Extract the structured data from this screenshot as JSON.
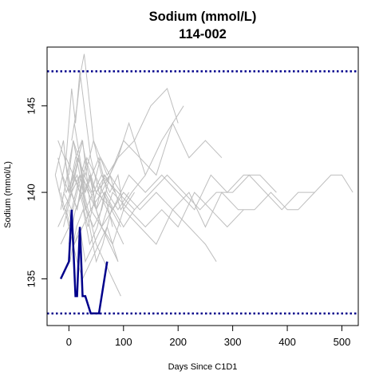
{
  "chart_data": {
    "type": "line",
    "title": "Sodium (mmol/L)",
    "subtitle": "114-002",
    "xlabel": "Days Since C1D1",
    "ylabel": "Sodium (mmol/L)",
    "xlim": [
      -40,
      530
    ],
    "ylim": [
      132.3,
      148.4
    ],
    "xticks": [
      0,
      100,
      200,
      300,
      400,
      500
    ],
    "xtick_labels": [
      "0",
      "100",
      "200",
      "300",
      "400",
      "500"
    ],
    "yticks": [
      135,
      140,
      145
    ],
    "ytick_labels": [
      "135",
      "140",
      "145"
    ],
    "grid": false,
    "legend": "none",
    "reference_lines": [
      {
        "y": 147,
        "style": "dotted",
        "color": "#00008B"
      },
      {
        "y": 133,
        "style": "dotted",
        "color": "#00008B"
      }
    ],
    "colors": {
      "highlight": "#00008B",
      "background_series": "#BEBEBE",
      "reference": "#00008B"
    },
    "highlight_series": {
      "x": [
        -15,
        0,
        5,
        12,
        15,
        20,
        25,
        30,
        40,
        55,
        70
      ],
      "y": [
        135,
        136,
        139,
        134,
        134,
        138,
        134,
        134,
        133,
        133,
        136
      ]
    },
    "background_series": [
      {
        "x": [
          -25,
          -10,
          0,
          15,
          30,
          45,
          70,
          90,
          110,
          140,
          170,
          210
        ],
        "y": [
          141,
          143,
          140,
          142,
          141,
          143,
          141,
          142,
          144,
          141,
          143,
          145
        ]
      },
      {
        "x": [
          -20,
          -5,
          10,
          25,
          40,
          60,
          90,
          120,
          150,
          180,
          200
        ],
        "y": [
          142,
          140,
          141,
          143,
          139,
          140,
          142,
          143,
          145,
          146,
          144
        ]
      },
      {
        "x": [
          -15,
          0,
          15,
          30,
          50,
          75,
          100,
          130,
          160,
          190,
          220,
          250,
          280
        ],
        "y": [
          140,
          138,
          140,
          142,
          140,
          141,
          143,
          142,
          141,
          144,
          142,
          143,
          142
        ]
      },
      {
        "x": [
          -5,
          10,
          20,
          35,
          50,
          80,
          110,
          140,
          170,
          200,
          230,
          260,
          290,
          320,
          350,
          380
        ],
        "y": [
          139,
          141,
          140,
          138,
          140,
          139,
          141,
          140,
          141,
          140,
          139,
          141,
          140,
          141,
          141,
          140
        ]
      },
      {
        "x": [
          0,
          15,
          30,
          45,
          60,
          90,
          120,
          150,
          180,
          210,
          240,
          270,
          300,
          330,
          360,
          390,
          420,
          450,
          480,
          500,
          520
        ],
        "y": [
          140,
          141,
          139,
          140,
          141,
          140,
          139,
          140,
          141,
          140,
          139,
          140,
          140,
          141,
          140,
          139,
          140,
          140,
          141,
          141,
          140
        ]
      },
      {
        "x": [
          -10,
          5,
          20,
          40,
          60,
          80,
          100,
          130,
          160,
          190,
          220,
          250,
          280,
          310,
          340,
          370,
          400,
          420,
          450
        ],
        "y": [
          140,
          139,
          141,
          140,
          138,
          139,
          140,
          139,
          140,
          139,
          140,
          138,
          140,
          139,
          139,
          140,
          139,
          139,
          140
        ]
      },
      {
        "x": [
          -20,
          -5,
          10,
          25,
          40,
          60,
          80,
          110,
          140,
          170,
          200,
          230,
          260,
          290,
          320
        ],
        "y": [
          138,
          139,
          137,
          138,
          139,
          138,
          140,
          139,
          138,
          139,
          138,
          140,
          139,
          138,
          139
        ]
      },
      {
        "x": [
          0,
          10,
          20,
          30,
          45,
          60,
          80,
          100,
          130,
          160,
          190,
          220,
          250,
          270
        ],
        "y": [
          139,
          137,
          138,
          136,
          137,
          138,
          137,
          139,
          138,
          137,
          139,
          138,
          137,
          136
        ]
      },
      {
        "x": [
          -15,
          0,
          15,
          25,
          40,
          55,
          70,
          90
        ],
        "y": [
          137,
          138,
          136,
          135,
          136,
          137,
          138,
          136
        ]
      },
      {
        "x": [
          -10,
          5,
          20,
          35,
          50,
          65,
          80,
          95
        ],
        "y": [
          138,
          140,
          141,
          139,
          137,
          136,
          135,
          134
        ]
      },
      {
        "x": [
          5,
          15,
          22,
          28,
          35,
          45,
          60,
          75,
          90,
          100,
          120
        ],
        "y": [
          143,
          145,
          147,
          148,
          146,
          143,
          141,
          140,
          141,
          139,
          140
        ]
      },
      {
        "x": [
          -5,
          5,
          12,
          20,
          28,
          40,
          55,
          70,
          85,
          100
        ],
        "y": [
          142,
          146,
          144,
          147,
          145,
          142,
          140,
          139,
          138,
          137
        ]
      },
      {
        "x": [
          0,
          8,
          18,
          28,
          38,
          50,
          65,
          80
        ],
        "y": [
          141,
          143,
          142,
          140,
          141,
          139,
          140,
          138
        ]
      },
      {
        "x": [
          -20,
          -8,
          5,
          15,
          25,
          35,
          50,
          65,
          85
        ],
        "y": [
          143,
          142,
          140,
          139,
          141,
          140,
          139,
          141,
          140
        ]
      },
      {
        "x": [
          -25,
          -10,
          5,
          18,
          30,
          42,
          55,
          70,
          90,
          110
        ],
        "y": [
          141,
          139,
          140,
          142,
          140,
          141,
          142,
          140,
          139,
          140
        ]
      },
      {
        "x": [
          -15,
          -3,
          8,
          20,
          32,
          45,
          60,
          75,
          95
        ],
        "y": [
          139,
          141,
          143,
          141,
          139,
          138,
          139,
          141,
          140
        ]
      },
      {
        "x": [
          0,
          12,
          25,
          38,
          50,
          62,
          78,
          95
        ],
        "y": [
          137,
          139,
          140,
          138,
          136,
          137,
          139,
          138
        ]
      },
      {
        "x": [
          -8,
          4,
          15,
          28,
          42,
          58,
          75,
          95,
          115,
          140
        ],
        "y": [
          142,
          140,
          139,
          141,
          140,
          142,
          141,
          139,
          140,
          141
        ]
      },
      {
        "x": [
          10,
          20,
          30,
          40,
          50,
          60,
          75,
          90
        ],
        "y": [
          144,
          142,
          140,
          141,
          139,
          138,
          137,
          136
        ]
      },
      {
        "x": [
          -18,
          -5,
          8,
          20,
          33,
          48,
          62,
          80,
          100
        ],
        "y": [
          140,
          142,
          141,
          140,
          142,
          141,
          140,
          139,
          140
        ]
      },
      {
        "x": [
          2,
          14,
          26,
          38,
          52,
          66,
          82,
          100,
          120
        ],
        "y": [
          136,
          138,
          139,
          137,
          138,
          140,
          139,
          138,
          139
        ]
      },
      {
        "x": [
          -12,
          0,
          12,
          24,
          36,
          50,
          66,
          84
        ],
        "y": [
          141,
          140,
          142,
          143,
          141,
          140,
          141,
          140
        ]
      }
    ]
  }
}
